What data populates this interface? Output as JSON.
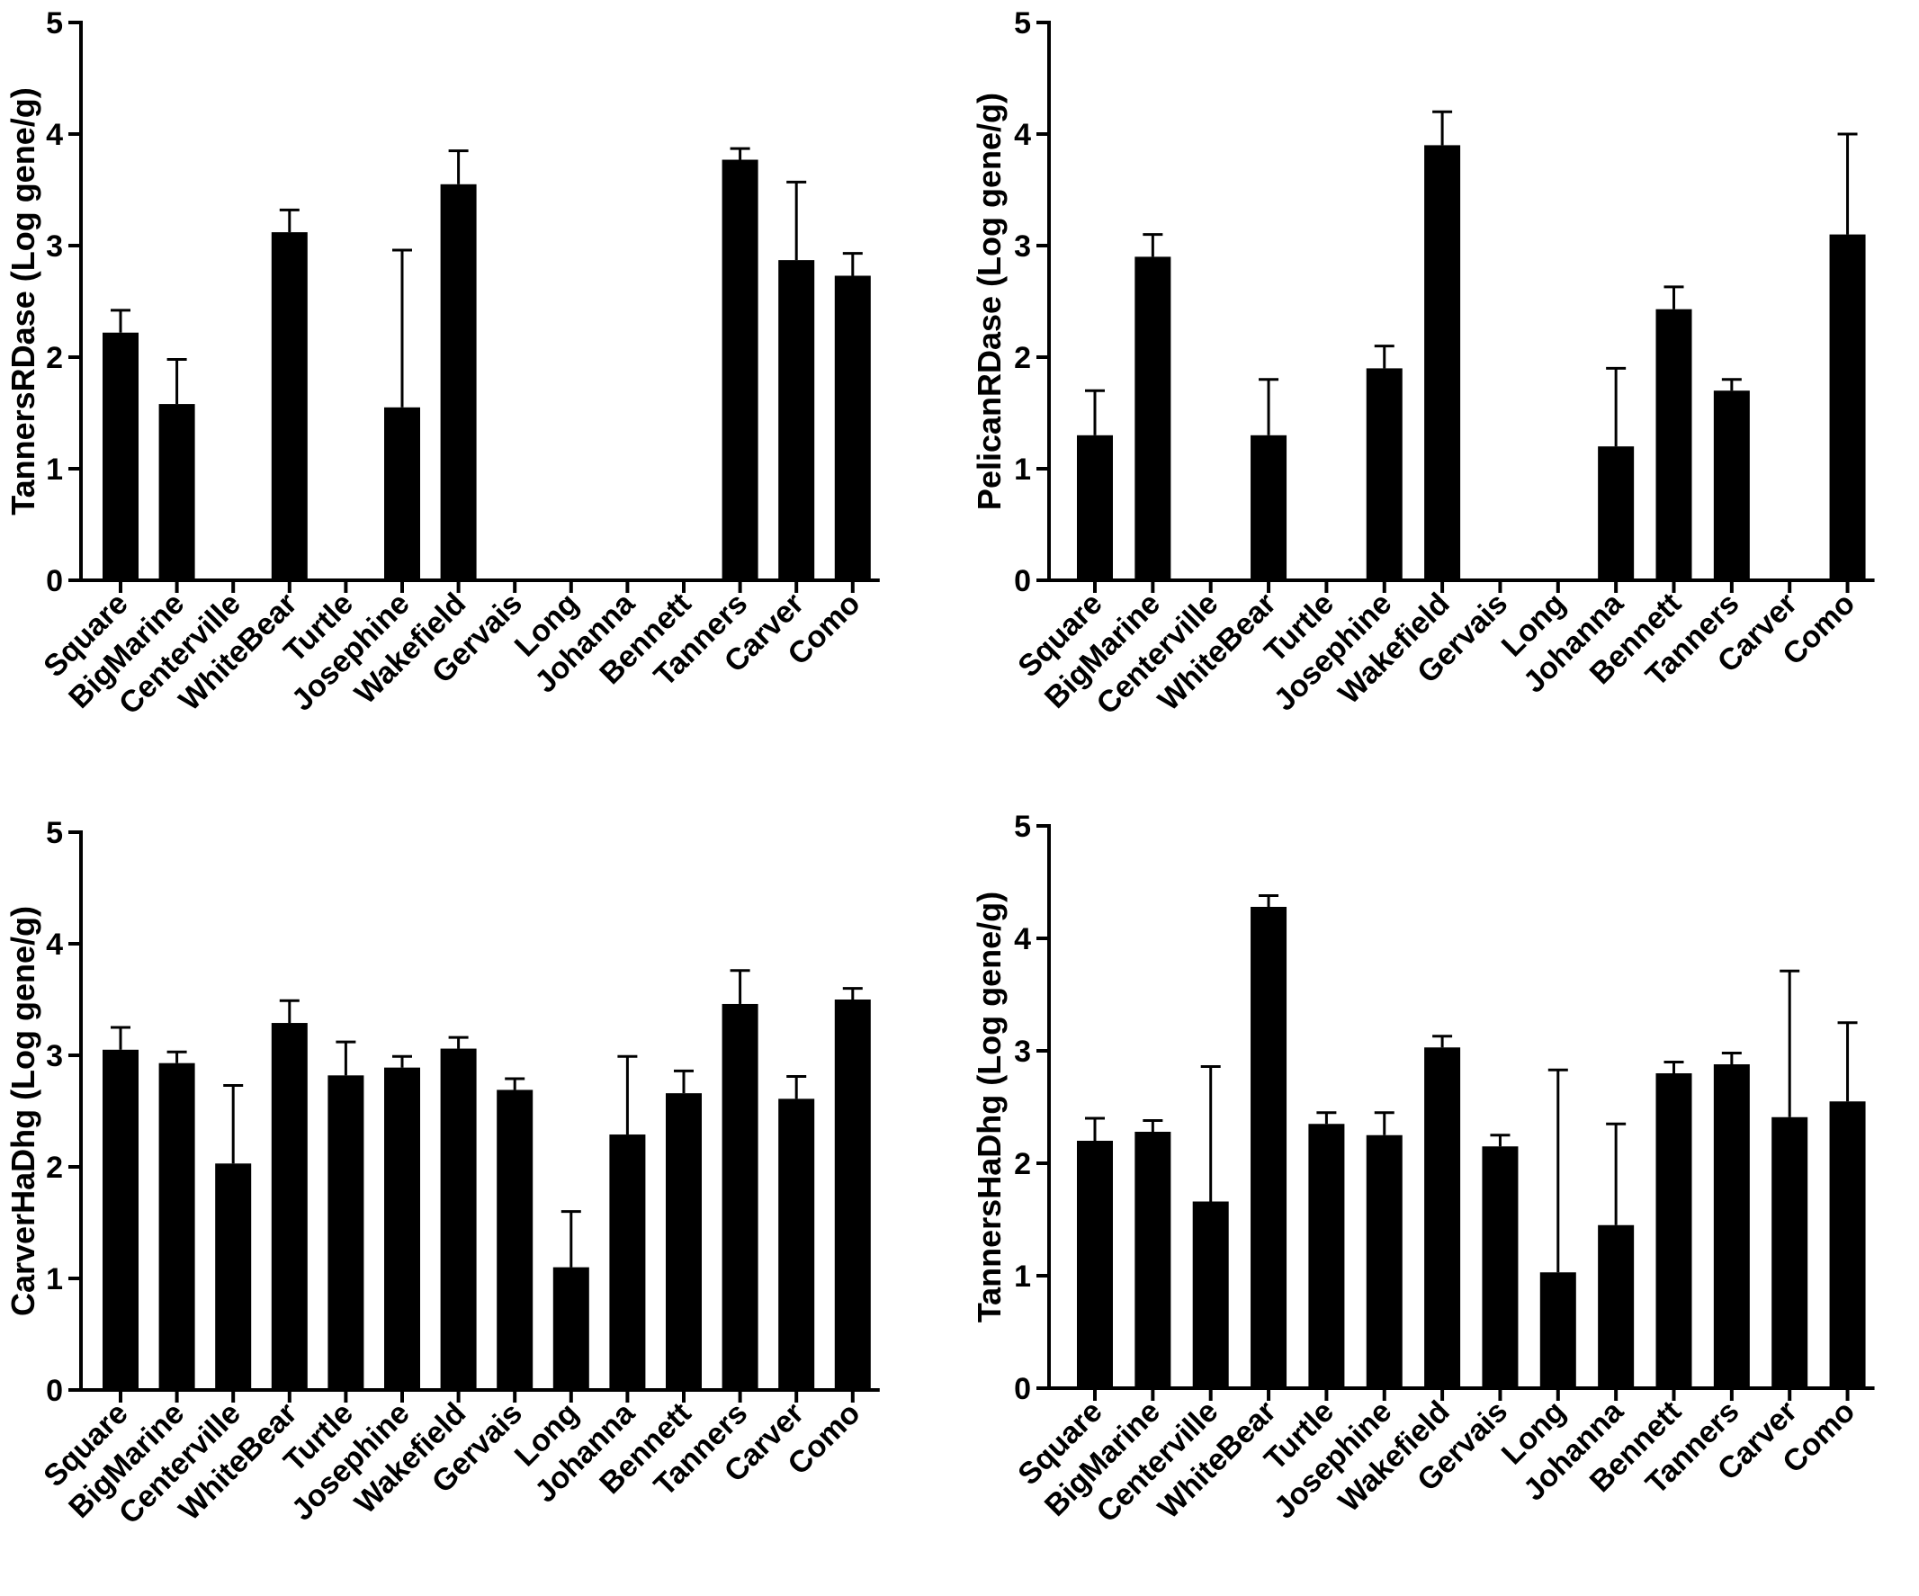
{
  "chart_data": [
    {
      "type": "bar",
      "title": "",
      "xlabel": "",
      "ylabel": "TannersRDase (Log gene/g)",
      "ylim": [
        0,
        5
      ],
      "yticks": [
        "0",
        "1",
        "2",
        "3",
        "4",
        "5"
      ],
      "categories": [
        "Square",
        "BigMarine",
        "Centerville",
        "WhiteBear",
        "Turtle",
        "Josephine",
        "Wakefield",
        "Gervais",
        "Long",
        "Johanna",
        "Bennett",
        "Tanners",
        "Carver",
        "Como"
      ],
      "values": [
        2.22,
        1.58,
        0,
        3.12,
        0,
        1.55,
        3.55,
        0,
        0,
        0,
        0,
        3.77,
        2.87,
        2.73
      ],
      "errors": [
        0.2,
        0.4,
        0,
        0.2,
        0,
        1.41,
        0.3,
        0,
        0,
        0,
        0,
        0.1,
        0.7,
        0.2
      ],
      "color": "#000000"
    },
    {
      "type": "bar",
      "title": "",
      "xlabel": "",
      "ylabel": "PelicanRDase (Log gene/g)",
      "ylim": [
        0,
        5
      ],
      "yticks": [
        "0",
        "1",
        "2",
        "3",
        "4",
        "5"
      ],
      "categories": [
        "Square",
        "BigMarine",
        "Centerville",
        "WhiteBear",
        "Turtle",
        "Josephine",
        "Wakefield",
        "Gervais",
        "Long",
        "Johanna",
        "Bennett",
        "Tanners",
        "Carver",
        "Como"
      ],
      "values": [
        1.3,
        2.9,
        0,
        1.3,
        0,
        1.9,
        3.9,
        0,
        0,
        1.2,
        2.43,
        1.7,
        0,
        3.1
      ],
      "errors": [
        0.4,
        0.2,
        0,
        0.5,
        0,
        0.2,
        0.3,
        0,
        0,
        0.7,
        0.2,
        0.1,
        0,
        0.9
      ],
      "color": "#000000"
    },
    {
      "type": "bar",
      "title": "",
      "xlabel": "",
      "ylabel": "CarverHaDhg (Log gene/g)",
      "ylim": [
        0,
        5
      ],
      "yticks": [
        "0",
        "1",
        "2",
        "3",
        "4",
        "5"
      ],
      "categories": [
        "Square",
        "BigMarine",
        "Centerville",
        "WhiteBear",
        "Turtle",
        "Josephine",
        "Wakefield",
        "Gervais",
        "Long",
        "Johanna",
        "Bennett",
        "Tanners",
        "Carver",
        "Como"
      ],
      "values": [
        3.05,
        2.93,
        2.03,
        3.29,
        2.82,
        2.89,
        3.06,
        2.69,
        1.1,
        2.29,
        2.66,
        3.46,
        2.61,
        3.5
      ],
      "errors": [
        0.2,
        0.1,
        0.7,
        0.2,
        0.3,
        0.1,
        0.1,
        0.1,
        0.5,
        0.7,
        0.2,
        0.3,
        0.2,
        0.1
      ],
      "color": "#000000"
    },
    {
      "type": "bar",
      "title": "",
      "xlabel": "",
      "ylabel": "TannersHaDhg (Log gene/g)",
      "ylim": [
        0,
        5
      ],
      "yticks": [
        "0",
        "1",
        "2",
        "3",
        "4",
        "5"
      ],
      "categories": [
        "Square",
        "BigMarine",
        "Centerville",
        "WhiteBear",
        "Turtle",
        "Josephine",
        "Wakefield",
        "Gervais",
        "Long",
        "Johanna",
        "Bennett",
        "Tanners",
        "Carver",
        "Como"
      ],
      "values": [
        2.2,
        2.28,
        1.66,
        4.28,
        2.35,
        2.25,
        3.03,
        2.15,
        1.03,
        1.45,
        2.8,
        2.88,
        2.41,
        2.55
      ],
      "errors": [
        0.2,
        0.1,
        1.2,
        0.1,
        0.1,
        0.2,
        0.1,
        0.1,
        1.8,
        0.9,
        0.1,
        0.1,
        1.3,
        0.7
      ],
      "color": "#000000"
    }
  ]
}
